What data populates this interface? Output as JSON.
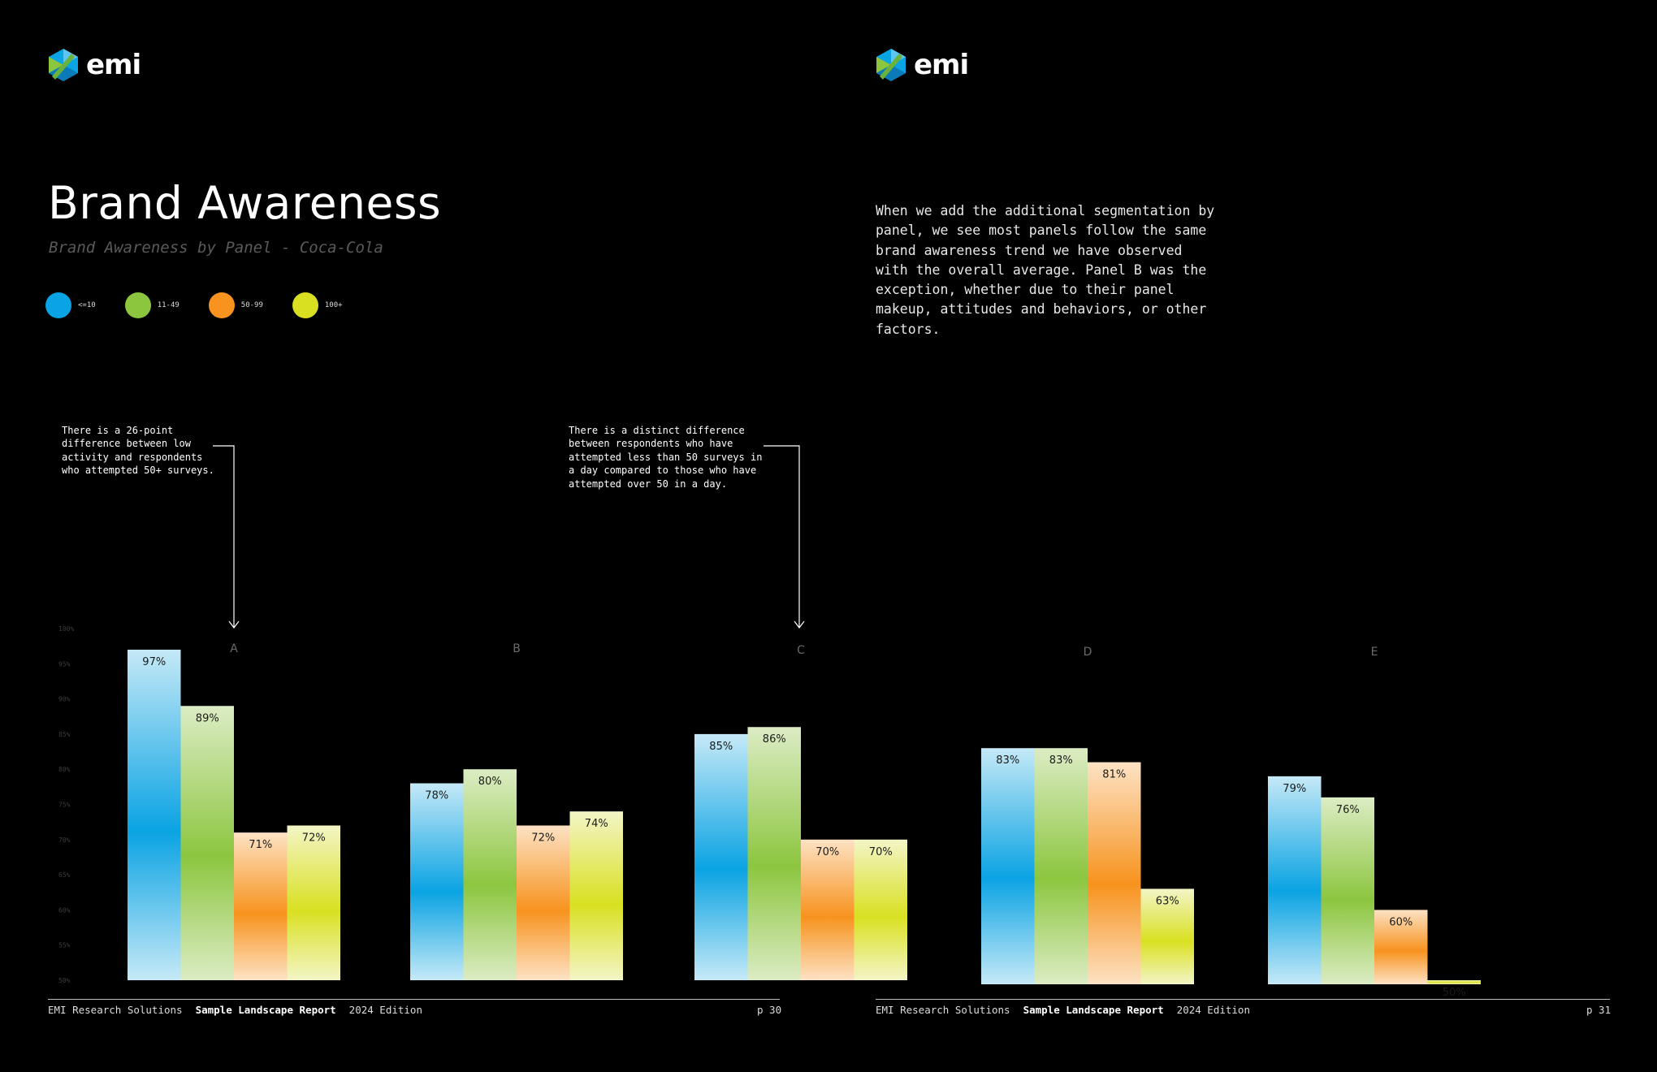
{
  "brand": {
    "logo_text": "emi"
  },
  "title": "Brand Awareness",
  "subtitle": "Brand Awareness by Panel - Coca-Cola",
  "legend": [
    {
      "label": "<=10",
      "color": "#0aa3e3"
    },
    {
      "label": "11-49",
      "color": "#8cc63f"
    },
    {
      "label": "50-99",
      "color": "#f7931e"
    },
    {
      "label": "100+",
      "color": "#d9e021"
    }
  ],
  "intro_text": "When we add the additional segmentation by panel, we see most panels follow the same brand awareness trend we have observed with the overall average. Panel B was the exception, whether due to their panel makeup, attitudes and behaviors, or other factors.",
  "annotations": [
    {
      "text": "There is a 26-point difference between low activity and respondents who attempted 50+ surveys."
    },
    {
      "text": "There is a distinct difference between respondents who have attempted less than 50 surveys in a day compared to those who have attempted over 50 in a day."
    }
  ],
  "chart_data": {
    "type": "bar",
    "title": "Brand Awareness",
    "subtitle": "Brand Awareness by Panel - Coca-Cola",
    "categories": [
      "A",
      "B",
      "C",
      "D",
      "E"
    ],
    "series": [
      {
        "name": "<=10",
        "color": "#0aa3e3",
        "values": [
          97,
          78,
          85,
          83,
          79
        ]
      },
      {
        "name": "11-49",
        "color": "#8cc63f",
        "values": [
          89,
          80,
          86,
          83,
          76
        ]
      },
      {
        "name": "50-99",
        "color": "#f7931e",
        "values": [
          71,
          72,
          70,
          81,
          60
        ]
      },
      {
        "name": "100+",
        "color": "#d9e021",
        "values": [
          72,
          74,
          70,
          63,
          50
        ]
      }
    ],
    "ylim": [
      50,
      100
    ],
    "yticks": [
      "100%",
      "95%",
      "90%",
      "85%",
      "80%",
      "75%",
      "70%",
      "65%",
      "60%",
      "55%",
      "50%"
    ],
    "legend_position": "top-left"
  },
  "footer": {
    "left": {
      "company": "EMI Research Solutions",
      "report": "Sample Landscape Report",
      "edition": "2024 Edition",
      "page": "p 30"
    },
    "right": {
      "company": "EMI Research Solutions",
      "report": "Sample Landscape Report",
      "edition": "2024 Edition",
      "page": "p 31"
    }
  }
}
